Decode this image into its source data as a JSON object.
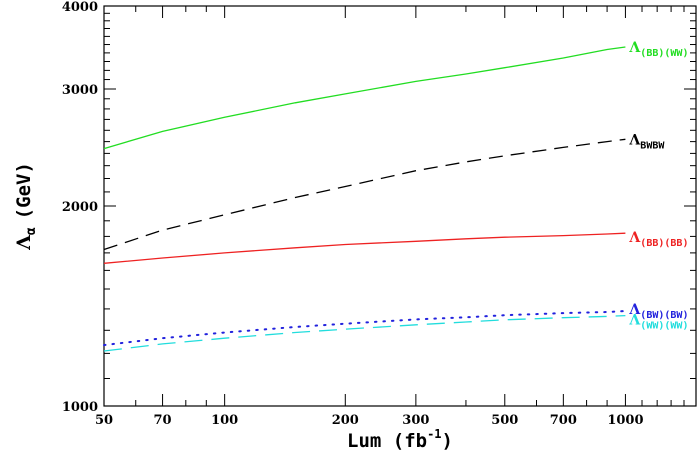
{
  "chart_data": {
    "type": "line",
    "xlabel": "Lum (fb",
    "xlabel_sup": "-1",
    "xlabel_close": ")",
    "ylabel": "Λ",
    "ylabel_sub": "α",
    "ylabel_unit": "(GeV)",
    "x_scale": "log",
    "y_scale": "log",
    "xlim": [
      50,
      1500
    ],
    "ylim": [
      1000,
      4000
    ],
    "x_ticks": [
      50,
      70,
      100,
      200,
      300,
      500,
      700,
      1000
    ],
    "x_tick_labels": [
      "50",
      "70",
      "100",
      "200",
      "300",
      "500",
      "700",
      "1000"
    ],
    "y_ticks": [
      1000,
      2000,
      3000,
      4000
    ],
    "y_tick_labels": [
      "1000",
      "2000",
      "3000",
      "4000"
    ],
    "grid": false,
    "series": [
      {
        "name": "Λ",
        "name_sub": "(BB)(WW)",
        "color": "#22dd22",
        "style": "solid",
        "x": [
          50,
          70,
          100,
          150,
          200,
          300,
          400,
          500,
          700,
          900,
          1000
        ],
        "values": [
          2440,
          2590,
          2720,
          2860,
          2950,
          3080,
          3160,
          3230,
          3340,
          3440,
          3470
        ]
      },
      {
        "name": "Λ",
        "name_sub": "BWBW",
        "color": "#000000",
        "style": "dashed",
        "x": [
          50,
          70,
          100,
          150,
          200,
          300,
          400,
          500,
          700,
          900,
          1000
        ],
        "values": [
          1720,
          1840,
          1940,
          2060,
          2140,
          2260,
          2330,
          2380,
          2450,
          2500,
          2520
        ]
      },
      {
        "name": "Λ",
        "name_sub": "(BB)(BB)",
        "color": "#ee2222",
        "style": "solid",
        "x": [
          50,
          70,
          100,
          150,
          200,
          300,
          400,
          500,
          700,
          900,
          1000
        ],
        "values": [
          1640,
          1670,
          1700,
          1730,
          1750,
          1770,
          1785,
          1795,
          1805,
          1815,
          1820
        ]
      },
      {
        "name": "Λ",
        "name_sub": "(BW)(BW)",
        "color": "#2222dd",
        "style": "dotted",
        "x": [
          50,
          70,
          100,
          150,
          200,
          300,
          400,
          500,
          700,
          900,
          1000
        ],
        "values": [
          1235,
          1265,
          1290,
          1315,
          1330,
          1350,
          1360,
          1370,
          1380,
          1385,
          1390
        ]
      },
      {
        "name": "Λ",
        "name_sub": "(WW)(WW)",
        "color": "#22dddd",
        "style": "longdash",
        "x": [
          50,
          70,
          100,
          150,
          200,
          300,
          400,
          500,
          700,
          900,
          1000
        ],
        "values": [
          1210,
          1240,
          1265,
          1290,
          1305,
          1325,
          1338,
          1348,
          1358,
          1364,
          1368
        ]
      }
    ]
  }
}
